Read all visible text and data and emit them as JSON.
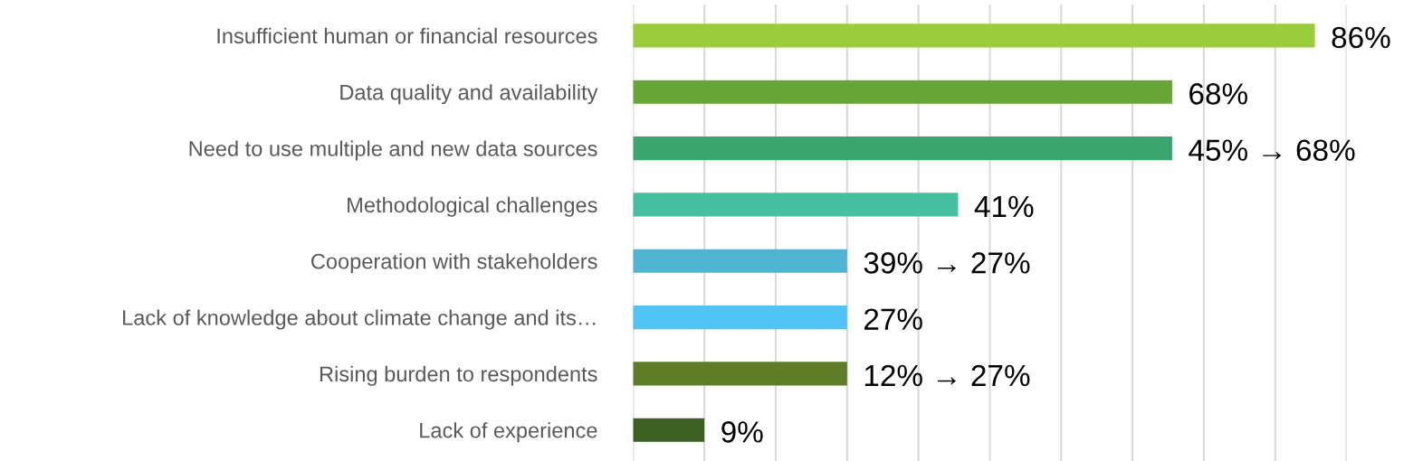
{
  "chart_data": {
    "type": "bar",
    "orientation": "horizontal",
    "categories": [
      "Insufficient human or financial resources",
      "Data quality and availability",
      "Need to use multiple and new data sources",
      "Methodological challenges",
      "Cooperation with stakeholders",
      "Lack of knowledge about climate change and its…",
      "Rising burden to respondents",
      "Lack of experience"
    ],
    "values": [
      86,
      68,
      68,
      41,
      27,
      27,
      27,
      9
    ],
    "colors": [
      "#9acd3c",
      "#66a636",
      "#3aa66e",
      "#45c1a2",
      "#4fb4d1",
      "#52c3f5",
      "#5f7d26",
      "#3c6021"
    ],
    "value_labels": [
      "86%",
      "68%",
      "45% → 68%",
      "41%",
      "39% → 27%",
      "27%",
      "12% → 27%",
      "9%"
    ],
    "xlim": [
      0,
      90
    ],
    "xticks": [
      {
        "value": 0,
        "label": null
      },
      {
        "value": 9,
        "label": null
      },
      {
        "value": 18,
        "label": null
      },
      {
        "value": 27,
        "label": null
      },
      {
        "value": 36,
        "label": null
      },
      {
        "value": 45,
        "label": null
      },
      {
        "value": 54,
        "label": null
      },
      {
        "value": 63,
        "label": null
      },
      {
        "value": 72,
        "label": null
      },
      {
        "value": 81,
        "label": null
      },
      {
        "value": 90,
        "label": null
      }
    ],
    "grid": "x",
    "tick_labels": "y",
    "legend": false
  }
}
